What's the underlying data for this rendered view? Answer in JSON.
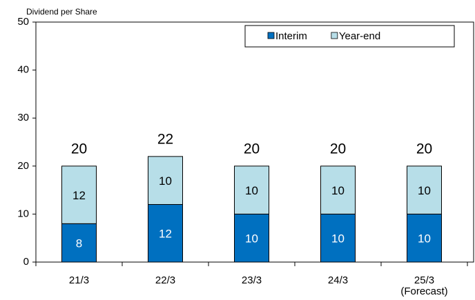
{
  "chart_data": {
    "type": "stacked_bar",
    "y_axis_label": "Dividend per Share",
    "categories": [
      "21/3",
      "22/3",
      "23/3",
      "24/3",
      "25/3 (Forecast)"
    ],
    "series": [
      {
        "name": "Interim",
        "color": "#0070c0",
        "values": [
          8,
          12,
          10,
          10,
          10
        ]
      },
      {
        "name": "Year-end",
        "color": "#b7dee8",
        "values": [
          12,
          10,
          10,
          10,
          10
        ]
      }
    ],
    "totals": [
      20,
      22,
      20,
      20,
      20
    ],
    "ylim": [
      0,
      50
    ],
    "yticks": [
      0,
      10,
      20,
      30,
      40,
      50
    ]
  }
}
